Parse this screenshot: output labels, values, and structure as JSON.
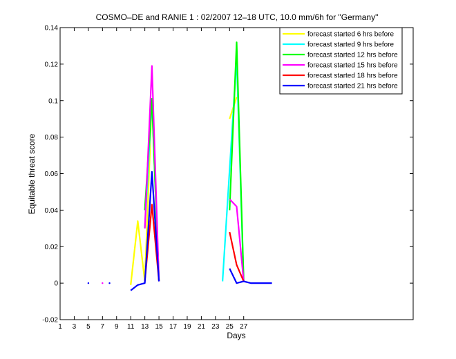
{
  "chart_data": {
    "type": "line",
    "title": "COSMO–DE and RANIE 1 : 02/2007 12–18 UTC, 10.0 mm/6h for \"Germany\"",
    "xlabel": "Days",
    "ylabel": "Equitable threat score",
    "xlim": [
      1,
      51
    ],
    "ylim": [
      -0.02,
      0.14
    ],
    "xticks": [
      1,
      3,
      5,
      7,
      9,
      11,
      13,
      15,
      17,
      19,
      21,
      23,
      25,
      27
    ],
    "xtick_labels": [
      "1",
      "3",
      "5",
      "7",
      "9",
      "11",
      "13",
      "15",
      "17",
      "19",
      "21",
      "23",
      "25",
      "27"
    ],
    "yticks": [
      -0.02,
      0,
      0.02,
      0.04,
      0.06,
      0.08,
      0.1,
      0.12,
      0.14
    ],
    "ytick_labels": [
      "-0.02",
      "0",
      "0.02",
      "0.04",
      "0.06",
      "0.08",
      "0.1",
      "0.12",
      "0.14"
    ],
    "grid": false,
    "legend_position": "top-right",
    "series": [
      {
        "name": "forecast started 6 hrs before",
        "color": "#ffff00",
        "points": [
          [
            11,
            -0.001
          ],
          [
            12,
            0.034
          ],
          [
            13,
            0.001
          ],
          [
            14,
            0.1
          ],
          [
            15,
            0.001
          ],
          null,
          [
            25,
            0.09
          ],
          [
            26,
            0.102
          ]
        ]
      },
      {
        "name": "forecast started 9 hrs before",
        "color": "#00ffff",
        "points": [
          [
            13,
            0.03
          ],
          [
            14,
            0.1
          ],
          [
            15,
            0.001
          ],
          null,
          [
            24,
            0.001
          ],
          [
            26,
            0.123
          ],
          [
            27,
            0.001
          ]
        ]
      },
      {
        "name": "forecast started 12 hrs before",
        "color": "#00ff00",
        "points": [
          [
            13,
            0.04
          ],
          [
            14,
            0.101
          ],
          [
            15,
            0.001
          ],
          null,
          [
            25,
            0.04
          ],
          [
            26,
            0.132
          ],
          [
            27,
            0.001
          ]
        ]
      },
      {
        "name": "forecast started 15 hrs before",
        "color": "#ff00ff",
        "points": [
          [
            7,
            0
          ],
          null,
          [
            13,
            0.03
          ],
          [
            14,
            0.119
          ],
          [
            15,
            0.001
          ],
          null,
          [
            25,
            0.046
          ],
          [
            26,
            0.042
          ],
          [
            27,
            0.001
          ]
        ]
      },
      {
        "name": "forecast started 18 hrs before",
        "color": "#ff0000",
        "points": [
          [
            13,
            0.001
          ],
          [
            14,
            0.043
          ],
          [
            15,
            0.001
          ],
          null,
          [
            25,
            0.028
          ],
          [
            26,
            0.01
          ],
          [
            27,
            0.001
          ]
        ]
      },
      {
        "name": "forecast started 21 hrs before",
        "color": "#0000ff",
        "points": [
          [
            5,
            0
          ],
          null,
          [
            8,
            0
          ],
          null,
          [
            11,
            -0.004
          ],
          [
            12,
            -0.001
          ],
          [
            13,
            0
          ],
          [
            14,
            0.061
          ],
          [
            15,
            0.001
          ],
          null,
          [
            25,
            0.008
          ],
          [
            26,
            0
          ],
          [
            27,
            0.001
          ],
          [
            28,
            0
          ],
          [
            29,
            0
          ],
          [
            31,
            0
          ]
        ]
      }
    ]
  }
}
